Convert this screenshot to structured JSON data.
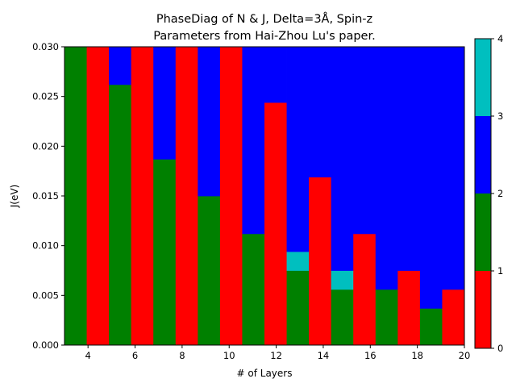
{
  "chart_data": {
    "type": "heatmap",
    "title_line1": "PhaseDiag of N & J, Delta=3Å, Spin-z",
    "title_line2": "Parameters from Hai-Zhou Lu's paper.",
    "xlabel": "# of Layers",
    "ylabel": "J(eV)",
    "xlim": [
      3,
      20
    ],
    "ylim": [
      0,
      0.03
    ],
    "x_ticks": [
      4,
      6,
      8,
      10,
      12,
      14,
      16,
      18,
      20
    ],
    "y_ticks": [
      "0.000",
      "0.005",
      "0.010",
      "0.015",
      "0.020",
      "0.025",
      "0.030"
    ],
    "colorbar": {
      "range": [
        0,
        4
      ],
      "ticks": [
        0,
        1,
        2,
        3,
        4
      ],
      "colors": [
        "#ff0000",
        "#008000",
        "#0000ff",
        "#00bfbf"
      ]
    },
    "columns": [
      {
        "layers": 3,
        "segments": [
          {
            "to": 0.03,
            "phase": 2
          }
        ]
      },
      {
        "layers": 4,
        "segments": [
          {
            "to": 0.03,
            "phase": 1
          }
        ]
      },
      {
        "layers": 5,
        "segments": [
          {
            "to": 0.0262,
            "phase": 2
          },
          {
            "to": 0.03,
            "phase": 3
          }
        ]
      },
      {
        "layers": 6,
        "segments": [
          {
            "to": 0.03,
            "phase": 1
          }
        ]
      },
      {
        "layers": 7,
        "segments": [
          {
            "to": 0.0187,
            "phase": 2
          },
          {
            "to": 0.03,
            "phase": 3
          }
        ]
      },
      {
        "layers": 8,
        "segments": [
          {
            "to": 0.03,
            "phase": 1
          }
        ]
      },
      {
        "layers": 9,
        "segments": [
          {
            "to": 0.015,
            "phase": 2
          },
          {
            "to": 0.03,
            "phase": 3
          }
        ]
      },
      {
        "layers": 10,
        "segments": [
          {
            "to": 0.03,
            "phase": 1
          }
        ]
      },
      {
        "layers": 11,
        "segments": [
          {
            "to": 0.0112,
            "phase": 2
          },
          {
            "to": 0.03,
            "phase": 3
          }
        ]
      },
      {
        "layers": 12,
        "segments": [
          {
            "to": 0.0244,
            "phase": 1
          },
          {
            "to": 0.03,
            "phase": 3
          }
        ]
      },
      {
        "layers": 13,
        "segments": [
          {
            "to": 0.0075,
            "phase": 2
          },
          {
            "to": 0.0094,
            "phase": 4
          },
          {
            "to": 0.03,
            "phase": 3
          }
        ]
      },
      {
        "layers": 14,
        "segments": [
          {
            "to": 0.0169,
            "phase": 1
          },
          {
            "to": 0.03,
            "phase": 3
          }
        ]
      },
      {
        "layers": 15,
        "segments": [
          {
            "to": 0.0056,
            "phase": 2
          },
          {
            "to": 0.0075,
            "phase": 4
          },
          {
            "to": 0.03,
            "phase": 3
          }
        ]
      },
      {
        "layers": 16,
        "segments": [
          {
            "to": 0.0112,
            "phase": 1
          },
          {
            "to": 0.03,
            "phase": 3
          }
        ]
      },
      {
        "layers": 17,
        "segments": [
          {
            "to": 0.0056,
            "phase": 2
          },
          {
            "to": 0.03,
            "phase": 3
          }
        ]
      },
      {
        "layers": 18,
        "segments": [
          {
            "to": 0.0075,
            "phase": 1
          },
          {
            "to": 0.03,
            "phase": 3
          }
        ]
      },
      {
        "layers": 19,
        "segments": [
          {
            "to": 0.0037,
            "phase": 2
          },
          {
            "to": 0.03,
            "phase": 3
          }
        ]
      },
      {
        "layers": 20,
        "segments": [
          {
            "to": 0.0056,
            "phase": 1
          },
          {
            "to": 0.03,
            "phase": 3
          }
        ]
      }
    ]
  }
}
